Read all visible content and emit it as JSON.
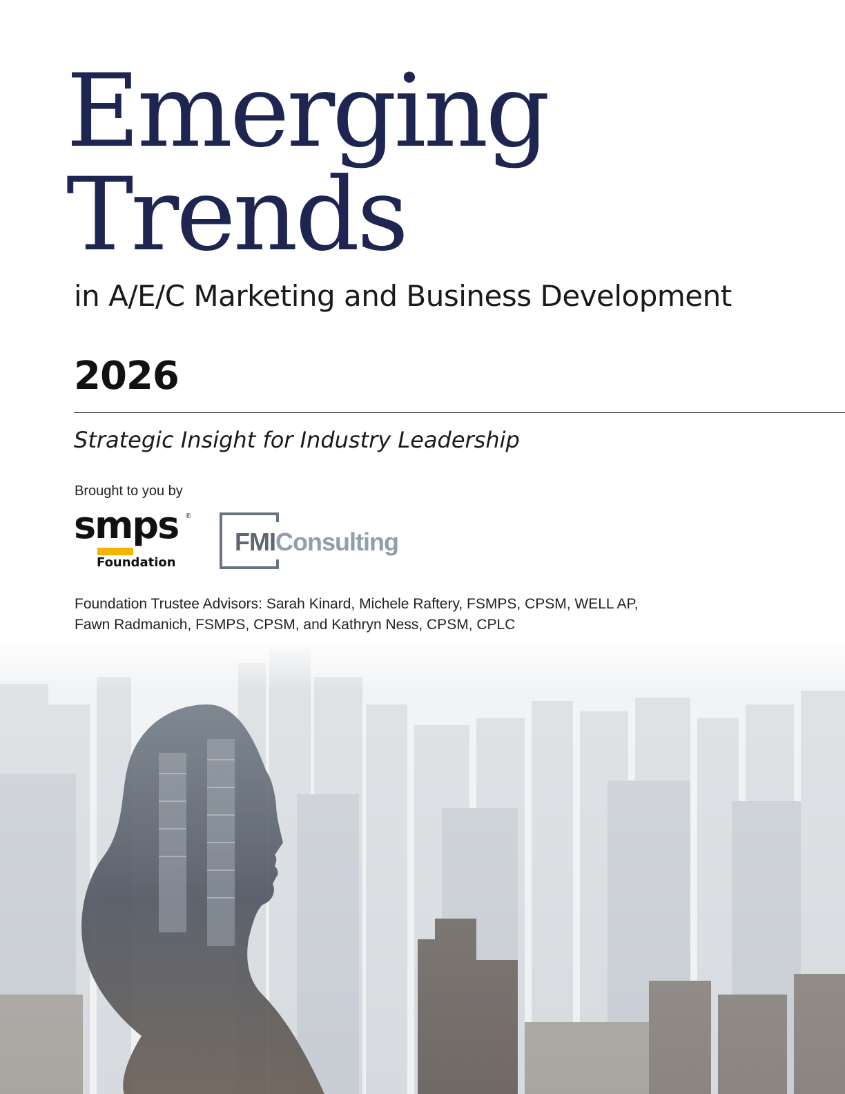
{
  "cover": {
    "title_line1": "Emerging",
    "title_line2": "Trends",
    "subtitle": "in A/E/C Marketing and Business Development",
    "year": "2026",
    "tagline": "Strategic Insight for Industry Leadership",
    "brought_by": "Brought to you by",
    "advisors_line1": "Foundation Trustee Advisors: Sarah Kinard, Michele Raftery, FSMPS, CPSM, WELL AP,",
    "advisors_line2": "Fawn Radmanich, FSMPS, CPSM, and Kathryn Ness, CPSM, CPLC"
  },
  "logos": {
    "smps_word": "smps",
    "smps_sub": "Foundation",
    "fmi_prefix": "FMI",
    "fmi_suffix": "Consulting"
  },
  "colors": {
    "title": "#1d2550",
    "smps_accent": "#f4b400",
    "fmi_gray": "#5e6673",
    "fmi_blue": "#8e9fb0"
  },
  "image": {
    "description_icon": "woman-profile-city-double-exposure"
  }
}
